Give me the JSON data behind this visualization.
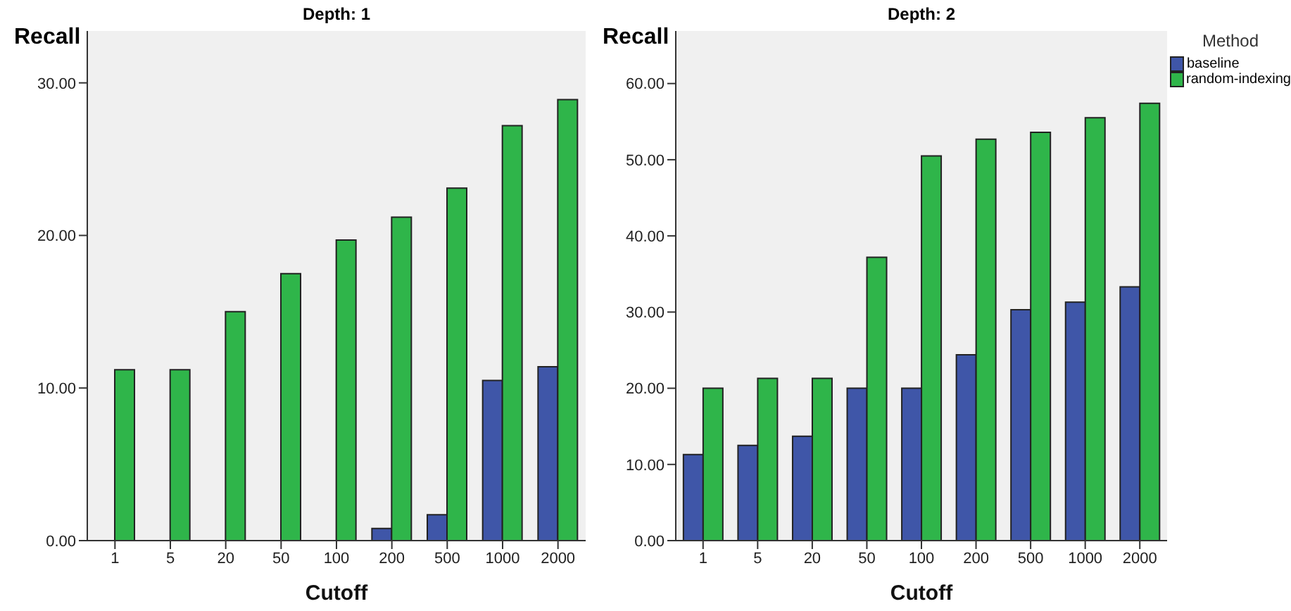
{
  "chart_data": [
    {
      "type": "bar",
      "title": "Depth: 1",
      "xlabel": "Cutoff",
      "ylabel": "Recall",
      "categories": [
        "1",
        "5",
        "20",
        "50",
        "100",
        "200",
        "500",
        "1000",
        "2000"
      ],
      "series": [
        {
          "color": "#3f56a8",
          "values": [
            0,
            0,
            0,
            0,
            0,
            0.8,
            1.7,
            10.5,
            11.4
          ]
        },
        {
          "color": "#2fb54a",
          "values": [
            11.2,
            11.2,
            15.0,
            17.5,
            19.7,
            21.2,
            23.1,
            27.2,
            28.9
          ]
        }
      ],
      "ylim": [
        0,
        33.4
      ],
      "yticks": [
        {
          "value": 0,
          "label": "0.00"
        },
        {
          "value": 10,
          "label": "10.00"
        },
        {
          "value": 20,
          "label": "20.00"
        },
        {
          "value": 30,
          "label": "30.00"
        }
      ],
      "grid": false,
      "legend": false
    },
    {
      "type": "bar",
      "title": "Depth: 2",
      "xlabel": "Cutoff",
      "ylabel": "Recall",
      "legend_title": "Method",
      "categories": [
        "1",
        "5",
        "20",
        "50",
        "100",
        "200",
        "500",
        "1000",
        "2000"
      ],
      "series": [
        {
          "name": "baseline",
          "color": "#3f56a8",
          "values": [
            11.3,
            12.5,
            13.7,
            20.0,
            20.0,
            24.4,
            30.3,
            31.3,
            33.3
          ]
        },
        {
          "name": "random-indexing",
          "color": "#2fb54a",
          "values": [
            20.0,
            21.3,
            21.3,
            37.2,
            50.5,
            52.7,
            53.6,
            55.5,
            57.4
          ]
        }
      ],
      "ylim": [
        0,
        66.9
      ],
      "yticks": [
        {
          "value": 0,
          "label": "0.00"
        },
        {
          "value": 10,
          "label": "10.00"
        },
        {
          "value": 20,
          "label": "20.00"
        },
        {
          "value": 30,
          "label": "30.00"
        },
        {
          "value": 40,
          "label": "40.00"
        },
        {
          "value": 50,
          "label": "50.00"
        },
        {
          "value": 60,
          "label": "60.00"
        }
      ],
      "grid": false,
      "legend": "right"
    }
  ]
}
